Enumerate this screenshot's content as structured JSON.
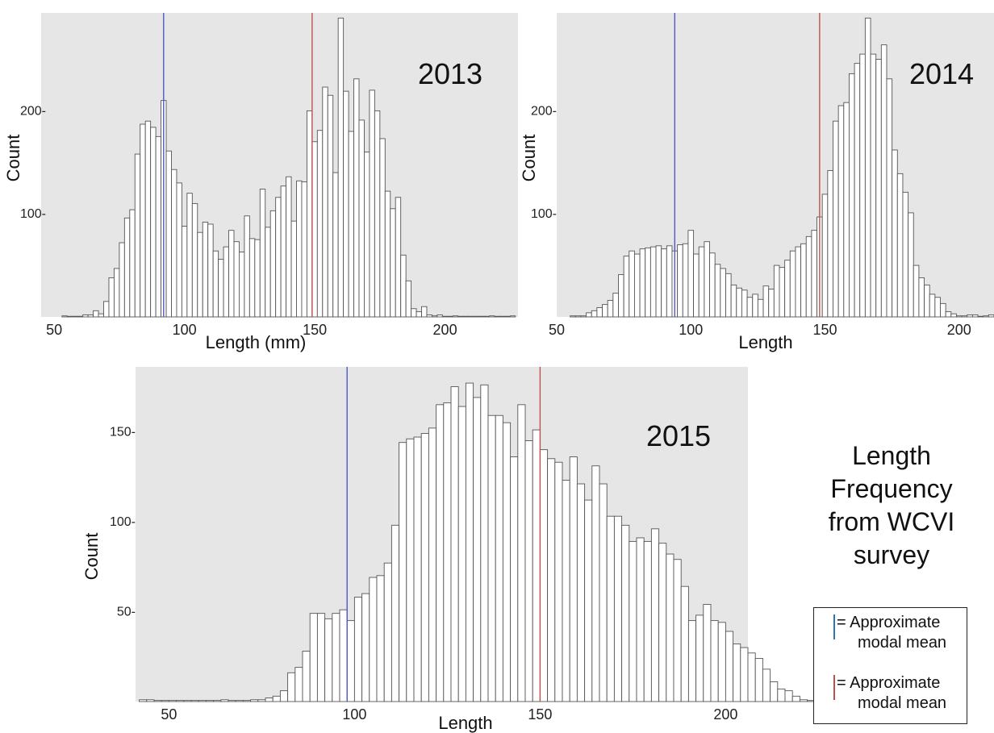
{
  "chart_data": [
    {
      "type": "bar",
      "panel_label": "2013",
      "xlabel": "Length (mm)",
      "ylabel": "Count",
      "xlim": [
        45,
        228
      ],
      "ylim": [
        0,
        295
      ],
      "xticks": [
        "50",
        "100",
        "150",
        "200"
      ],
      "yticks": [
        "100-",
        "200-"
      ],
      "bin_start": 53,
      "bin_width": 2,
      "values": [
        1,
        0,
        0,
        0,
        2,
        2,
        6,
        3,
        15,
        38,
        47,
        72,
        96,
        104,
        158,
        187,
        190,
        184,
        175,
        210,
        161,
        143,
        130,
        88,
        120,
        110,
        82,
        92,
        90,
        64,
        56,
        68,
        84,
        73,
        63,
        98,
        76,
        75,
        124,
        87,
        103,
        116,
        127,
        136,
        93,
        132,
        131,
        200,
        170,
        181,
        223,
        215,
        140,
        290,
        219,
        180,
        231,
        191,
        160,
        220,
        200,
        173,
        122,
        105,
        116,
        60,
        35,
        8,
        5,
        10,
        2,
        1,
        2,
        0,
        0,
        1,
        0,
        0,
        0,
        0,
        0,
        0,
        1,
        0,
        0,
        0,
        1
      ],
      "reference_lines": [
        {
          "x": 92,
          "color": "#4f58c2"
        },
        {
          "x": 149,
          "color": "#c0504d"
        }
      ]
    },
    {
      "type": "bar",
      "panel_label": "2014",
      "xlabel": "Length",
      "ylabel": "Count",
      "xlim": [
        50,
        213
      ],
      "ylim": [
        0,
        295
      ],
      "xticks": [
        "50",
        "100",
        "150",
        "200"
      ],
      "yticks": [
        "100-",
        "200-"
      ],
      "bin_start": 55,
      "bin_width": 2,
      "values": [
        1,
        1,
        1,
        4,
        6,
        9,
        12,
        16,
        23,
        41,
        59,
        64,
        61,
        66,
        67,
        68,
        69,
        66,
        69,
        64,
        70,
        71,
        84,
        61,
        68,
        73,
        62,
        51,
        47,
        42,
        31,
        28,
        26,
        19,
        22,
        17,
        30,
        27,
        50,
        48,
        55,
        64,
        68,
        71,
        78,
        84,
        97,
        119,
        142,
        190,
        205,
        208,
        236,
        246,
        255,
        290,
        255,
        250,
        264,
        231,
        162,
        139,
        121,
        101,
        50,
        38,
        31,
        22,
        19,
        13,
        5,
        3,
        1,
        1,
        2,
        2,
        0,
        1,
        2,
        0
      ],
      "reference_lines": [
        {
          "x": 94,
          "color": "#4f58c2"
        },
        {
          "x": 148,
          "color": "#c0504d"
        }
      ]
    },
    {
      "type": "bar",
      "panel_label": "2015",
      "xlabel": "Length",
      "ylabel": "Count",
      "xlim": [
        41,
        206
      ],
      "ylim": [
        0,
        186
      ],
      "xticks": [
        "50",
        "100",
        "150",
        "200"
      ],
      "yticks": [
        "150-",
        "100-",
        "50-"
      ],
      "bin_start": 42,
      "bin_width": 2,
      "values": [
        1,
        1,
        0,
        0,
        0,
        0,
        0,
        0,
        0,
        0,
        0,
        1,
        0,
        0,
        0,
        1,
        1,
        2,
        3,
        6,
        16,
        19,
        28,
        49,
        49,
        46,
        49,
        51,
        45,
        58,
        60,
        69,
        70,
        77,
        98,
        144,
        146,
        147,
        149,
        152,
        165,
        166,
        175,
        164,
        177,
        169,
        176,
        159,
        159,
        155,
        136,
        165,
        145,
        151,
        140,
        135,
        133,
        123,
        136,
        121,
        112,
        131,
        121,
        103,
        103,
        98,
        89,
        91,
        89,
        96,
        88,
        82,
        79,
        64,
        45,
        48,
        54,
        45,
        44,
        39,
        32,
        30,
        27,
        24,
        18,
        11,
        7,
        6,
        3,
        1,
        0,
        0,
        0,
        0,
        0,
        0,
        0,
        1,
        0,
        0,
        0,
        0,
        0,
        0,
        0,
        0
      ],
      "reference_lines": [
        {
          "x": 98,
          "color": "#4f58c2"
        },
        {
          "x": 150,
          "color": "#c0504d"
        }
      ]
    }
  ],
  "side_title": [
    "Length",
    "Frequency",
    "from WCVI",
    "survey"
  ],
  "legend": [
    {
      "color": "#2e75b6",
      "line1": "= Approximate",
      "line2": "modal mean"
    },
    {
      "color": "#c0504d",
      "line1": "= Approximate",
      "line2": "modal mean"
    }
  ]
}
